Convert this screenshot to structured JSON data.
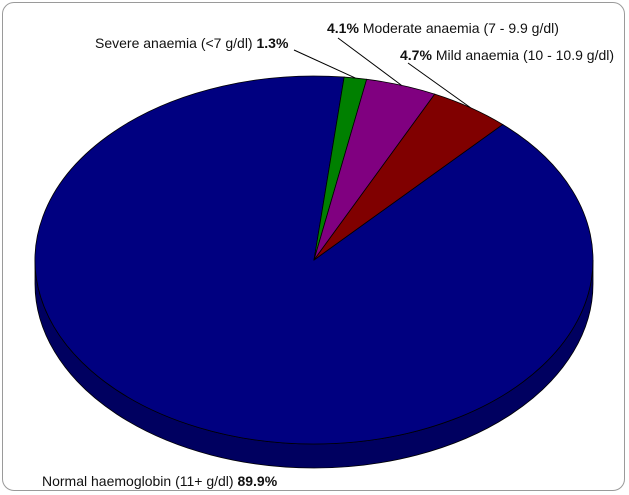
{
  "chart_data": {
    "type": "pie",
    "title": "",
    "slices": [
      {
        "label": "Normal haemoglobin (11+ g/dl)",
        "value": 89.9,
        "value_label": "89.9%",
        "color": "#000080",
        "side_color": "#000060"
      },
      {
        "label": "Severe anaemia (<7 g/dl)",
        "value": 1.3,
        "value_label": "1.3%",
        "color": "#008000",
        "side_color": "#006000"
      },
      {
        "label": "Moderate anaemia (7 - 9.9 g/dl)",
        "value": 4.1,
        "value_label": "4.1%",
        "color": "#800080",
        "side_color": "#600060"
      },
      {
        "label": "Mild anaemia (10 - 10.9 g/dl)",
        "value": 4.7,
        "value_label": "4.7%",
        "color": "#800000",
        "side_color": "#600000"
      }
    ],
    "style": "3d",
    "legend": "none"
  }
}
